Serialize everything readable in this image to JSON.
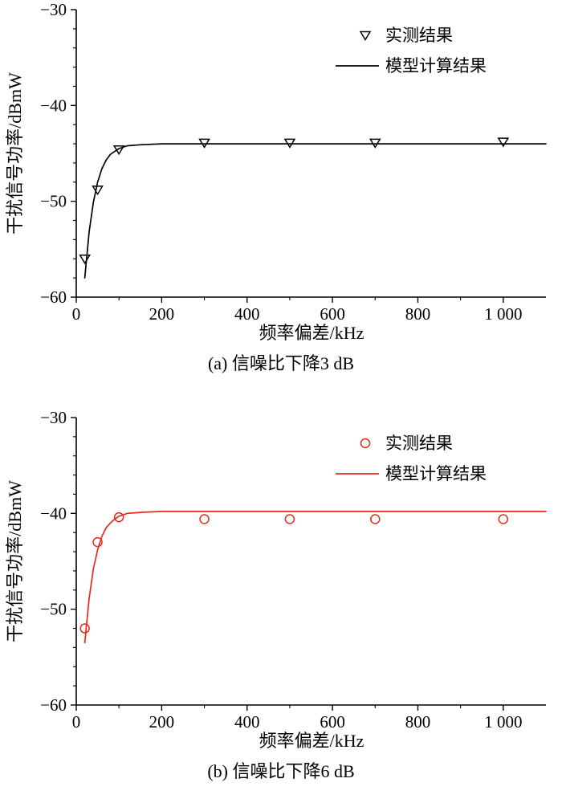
{
  "chart_data": [
    {
      "type": "line",
      "caption": "(a) 信噪比下降3 dB",
      "xlabel": "频率偏差/kHz",
      "ylabel": "干扰信号功率/dBmW",
      "color": "#000000",
      "marker": "triangle-down",
      "legend": [
        "实测结果",
        "模型计算结果"
      ],
      "legend_pos": "upper right",
      "grid": false,
      "xlim": [
        0,
        1100
      ],
      "ylim": [
        -60,
        -30
      ],
      "xminor_step": 100,
      "yminor_step": 2,
      "xticks": [
        {
          "value": 0,
          "label": "0"
        },
        {
          "value": 200,
          "label": "200"
        },
        {
          "value": 400,
          "label": "400"
        },
        {
          "value": 600,
          "label": "600"
        },
        {
          "value": 800,
          "label": "800"
        },
        {
          "value": 1000,
          "label": "1 000"
        }
      ],
      "yticks": [
        {
          "value": -60,
          "label": "−60"
        },
        {
          "value": -50,
          "label": "−50"
        },
        {
          "value": -40,
          "label": "−40"
        },
        {
          "value": -30,
          "label": "−30"
        }
      ],
      "series": [
        {
          "name": "实测结果",
          "type": "scatter",
          "x": [
            20,
            50,
            100,
            300,
            500,
            700,
            1000
          ],
          "y": [
            -56.0,
            -48.8,
            -44.6,
            -43.9,
            -43.9,
            -43.9,
            -43.8
          ]
        },
        {
          "name": "模型计算结果",
          "type": "line",
          "x": [
            20,
            30,
            40,
            50,
            60,
            70,
            80,
            90,
            100,
            120,
            150,
            200,
            300,
            500,
            700,
            900,
            1100
          ],
          "y": [
            -58.0,
            -53.2,
            -50.1,
            -48.0,
            -46.6,
            -45.7,
            -45.1,
            -44.8,
            -44.5,
            -44.2,
            -44.1,
            -44.0,
            -44.0,
            -44.0,
            -44.0,
            -44.0,
            -44.0
          ]
        }
      ]
    },
    {
      "type": "line",
      "caption": "(b) 信噪比下降6 dB",
      "xlabel": "频率偏差/kHz",
      "ylabel": "干扰信号功率/dBmW",
      "color": "#e8291c",
      "marker": "circle",
      "legend": [
        "实测结果",
        "模型计算结果"
      ],
      "legend_pos": "upper right",
      "grid": false,
      "xlim": [
        0,
        1100
      ],
      "ylim": [
        -60,
        -30
      ],
      "xminor_step": 100,
      "yminor_step": 2,
      "xticks": [
        {
          "value": 0,
          "label": "0"
        },
        {
          "value": 200,
          "label": "200"
        },
        {
          "value": 400,
          "label": "400"
        },
        {
          "value": 600,
          "label": "600"
        },
        {
          "value": 800,
          "label": "800"
        },
        {
          "value": 1000,
          "label": "1 000"
        }
      ],
      "yticks": [
        {
          "value": -60,
          "label": "−60"
        },
        {
          "value": -50,
          "label": "−50"
        },
        {
          "value": -40,
          "label": "−40"
        },
        {
          "value": -30,
          "label": "−30"
        }
      ],
      "series": [
        {
          "name": "实测结果",
          "type": "scatter",
          "x": [
            20,
            50,
            100,
            300,
            500,
            700,
            1000
          ],
          "y": [
            -52.0,
            -43.0,
            -40.4,
            -40.6,
            -40.6,
            -40.6,
            -40.6
          ]
        },
        {
          "name": "模型计算结果",
          "type": "line",
          "x": [
            20,
            30,
            40,
            50,
            60,
            70,
            80,
            90,
            100,
            120,
            150,
            200,
            300,
            500,
            700,
            900,
            1100
          ],
          "y": [
            -53.5,
            -48.9,
            -45.8,
            -43.8,
            -42.4,
            -41.5,
            -41.0,
            -40.6,
            -40.3,
            -40.0,
            -39.9,
            -39.8,
            -39.8,
            -39.8,
            -39.8,
            -39.8,
            -39.8
          ]
        }
      ]
    }
  ]
}
